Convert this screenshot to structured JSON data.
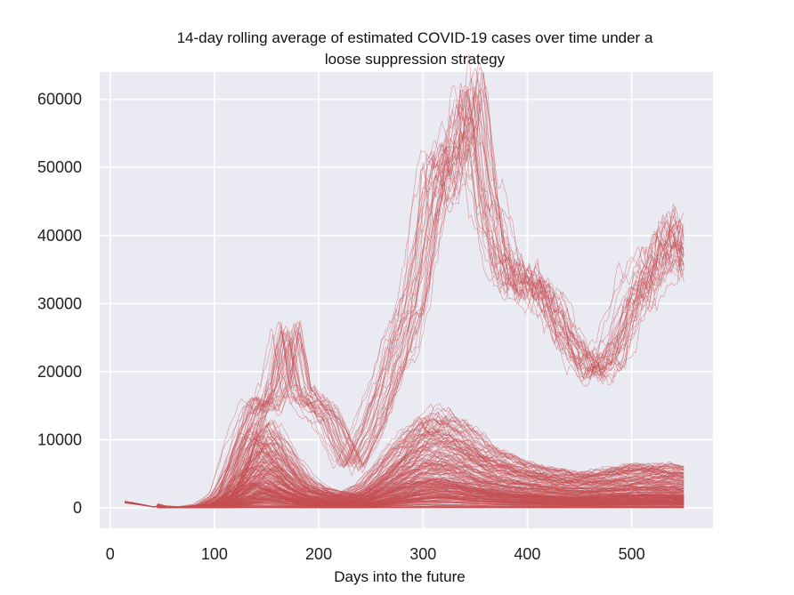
{
  "chart_data": {
    "type": "line",
    "title_lines": [
      "14-day rolling average of estimated COVID-19 cases over time under a",
      "loose suppression strategy"
    ],
    "xlabel": "Days into the future",
    "ylabel": "",
    "xlim": [
      -10,
      578
    ],
    "ylim": [
      -3000,
      64000
    ],
    "xticks": [
      0,
      100,
      200,
      300,
      400,
      500
    ],
    "yticks": [
      0,
      10000,
      20000,
      30000,
      40000,
      50000,
      60000
    ],
    "grid": true,
    "legend": "none",
    "x_start": 14,
    "x_end": 550,
    "series_count": 300,
    "line_color": "#c44e52",
    "background_color": "#eaeaf2",
    "grid_color": "#ffffff",
    "wave_profile": {
      "x": [
        14,
        30,
        40,
        60,
        80,
        95,
        110,
        125,
        140,
        150,
        160,
        170,
        180,
        195,
        210,
        230,
        250,
        270,
        290,
        310,
        330,
        345,
        350,
        360,
        380,
        400,
        420,
        440,
        460,
        480,
        500,
        520,
        540,
        550
      ],
      "upper_envelope": [
        1100,
        700,
        300,
        100,
        200,
        500,
        2000,
        9000,
        15500,
        15000,
        19000,
        26000,
        17000,
        15000,
        13000,
        6000,
        12000,
        21000,
        30000,
        48000,
        52000,
        61000,
        57000,
        45000,
        34000,
        33000,
        30000,
        24000,
        20000,
        22000,
        30000,
        35000,
        41000,
        36000
      ],
      "typical_envelope": [
        900,
        500,
        200,
        100,
        100,
        300,
        1500,
        5000,
        9000,
        10000,
        8000,
        6000,
        4000,
        2500,
        2000,
        1500,
        3000,
        6000,
        9000,
        11000,
        10000,
        9000,
        8000,
        7000,
        6000,
        5000,
        4500,
        4000,
        4000,
        4500,
        5000,
        5000,
        5000,
        4500
      ]
    }
  }
}
